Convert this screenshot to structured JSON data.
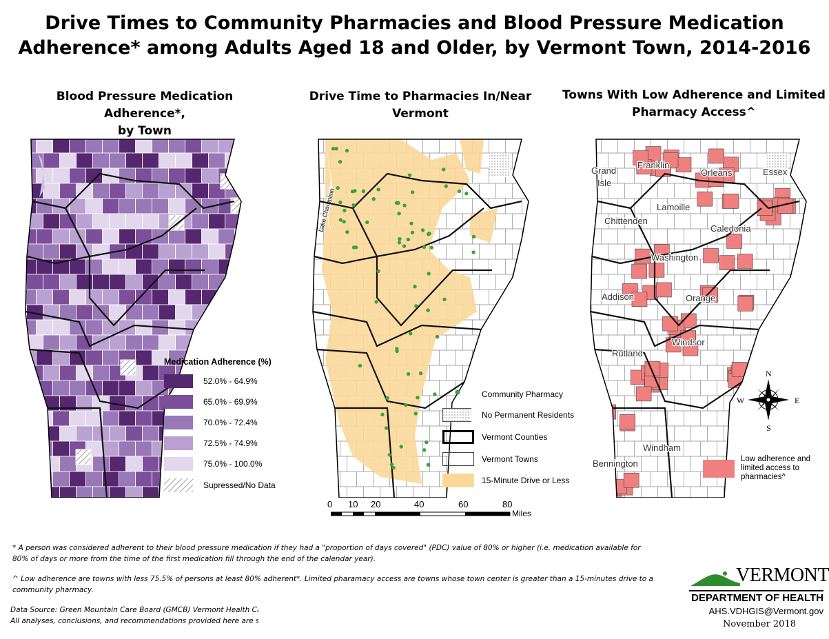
{
  "title": {
    "line1": "Drive Times to Community Pharmacies and Blood Pressure Medication",
    "line2": "Adherence* among Adults Aged 18 and Older, by Vermont Town, 2014-2016"
  },
  "panels": {
    "left": {
      "title1": "Blood Pressure Medication Adherence*,",
      "title2": "by Town",
      "legend_title": "Medication Adherence (%)",
      "legend": [
        {
          "label": "52.0% - 64.9%",
          "color": "#54276e"
        },
        {
          "label": "65.0% - 69.9%",
          "color": "#7b4f9a"
        },
        {
          "label": "70.0% - 72.4%",
          "color": "#9878b6"
        },
        {
          "label": "72.5% - 74.9%",
          "color": "#b9a1d1"
        },
        {
          "label": "75.0% - 100.0%",
          "color": "#e3d7ee"
        },
        {
          "label": "Supressed/No Data",
          "color": "hatch"
        }
      ]
    },
    "middle": {
      "title1": "Drive Time to Pharmacies In/Near",
      "title2": "Vermont",
      "lake_label": "Lake Champlain",
      "legend": [
        {
          "label": "Community Pharmacy",
          "type": "dot",
          "color": "#3aa33a"
        },
        {
          "label": "No Permanent Residents",
          "type": "dotted"
        },
        {
          "label": "Vermont Counties",
          "type": "thick"
        },
        {
          "label": "Vermont Towns",
          "type": "thin"
        },
        {
          "label": "15-Minute Drive or Less",
          "type": "fill",
          "color": "#fbd89a"
        }
      ],
      "scale_ticks": [
        "0",
        "10",
        "20",
        "40",
        "60",
        "80"
      ],
      "scale_units": "Miles"
    },
    "right": {
      "title1": "Towns With Low Adherence and Limited",
      "title2": "Pharmacy Access^",
      "counties": [
        "Grand",
        "Isle",
        "Franklin",
        "Orleans",
        "Essex",
        "Lamoille",
        "Chittenden",
        "Caledonia",
        "Washington",
        "Addison",
        "Orange",
        "Windsor",
        "Rutland",
        "Windham",
        "Bennington"
      ],
      "compass": {
        "n": "N",
        "s": "S",
        "e": "E",
        "w": "W"
      },
      "legend_label_1": "Low adherence and",
      "legend_label_2": "limited access to",
      "legend_label_3": "pharmacies^",
      "legend_color": "#f08080"
    }
  },
  "footnotes": {
    "f1_line1": "* A person was considered adherent to their blood pressure medication if they had a \"proportion of days covered\" (PDC) value of 80% or higher (i.e. medication available for",
    "f1_line2": "80% of days or more from the time of the first medication fill through the end of the calendar year).",
    "f2_line1": "^ Low adherence are towns with less 75.5% of persons at least 80% adherent*. Limited pharamacy access are towns whose town center is greater than a 15-minutes drive to a",
    "f2_line2": "community pharmacy.",
    "source1": "Data Source: Green Mountain Care Board (GMCB) Vermont Health Care Uniform Reporting and Evaluation System (VHCURES)",
    "source2": "All analyses, conclusions, and recommendations provided here are solely those of the Vermont Department of Health"
  },
  "logo": {
    "state": "VERMONT",
    "dept": "DEPARTMENT OF HEALTH",
    "email": "AHS.VDHGIS@Vermont.gov",
    "date": "November 2018"
  }
}
